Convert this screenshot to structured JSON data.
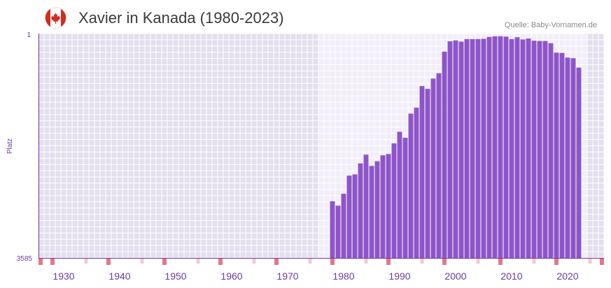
{
  "title": "Xavier in Kanada (1980-2023)",
  "source": "Quelle: Baby-Vornamen.de",
  "flag_icon": "canada-flag-icon",
  "colors": {
    "bar": "#8e55c8",
    "bg_inactive": "#e4dfee",
    "bg_active": "#f1eefa",
    "grid": "#ffffff",
    "axis": "#6b3aa5",
    "decade_marker": "#e07a86",
    "year_marker": "#f2c9cf",
    "flag_red": "#d52b1e"
  },
  "chart_data": {
    "type": "bar",
    "title": "Xavier in Kanada (1980-2023)",
    "xlabel": "",
    "ylabel": "Platz",
    "x_range": [
      1926,
      2027
    ],
    "ylim": [
      1,
      3585
    ],
    "y_inverted": true,
    "y_ticks": [
      "1",
      "3585"
    ],
    "x_ticks": [
      1930,
      1940,
      1950,
      1960,
      1970,
      1980,
      1990,
      2000,
      2010,
      2020
    ],
    "active_range": [
      1976,
      2023
    ],
    "years": [
      1976,
      1977,
      1978,
      1979,
      1980,
      1981,
      1982,
      1983,
      1984,
      1985,
      1986,
      1987,
      1988,
      1989,
      1990,
      1991,
      1992,
      1993,
      1994,
      1995,
      1996,
      1997,
      1998,
      1999,
      2000,
      2001,
      2002,
      2003,
      2004,
      2005,
      2006,
      2007,
      2008,
      2009,
      2010,
      2011,
      2012,
      2013,
      2014,
      2015,
      2016,
      2017,
      2018,
      2019,
      2020,
      2021,
      2022,
      2023
    ],
    "ranks": [
      3585,
      3585,
      2680,
      2750,
      2560,
      2270,
      2250,
      2075,
      1935,
      2115,
      2040,
      1945,
      1925,
      1755,
      1570,
      1665,
      1280,
      1185,
      840,
      885,
      720,
      635,
      290,
      125,
      110,
      130,
      90,
      90,
      90,
      85,
      55,
      45,
      45,
      50,
      90,
      60,
      95,
      80,
      115,
      120,
      120,
      155,
      305,
      310,
      385,
      395,
      545,
      3585
    ]
  }
}
